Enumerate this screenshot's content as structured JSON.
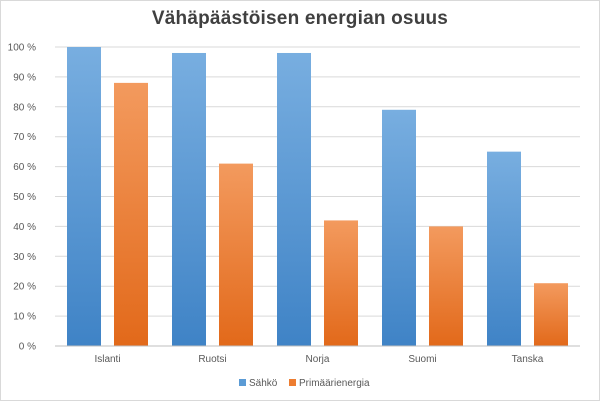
{
  "chart_data": {
    "type": "bar",
    "title": "Vähäpäästöisen  energian osuus",
    "categories": [
      "Islanti",
      "Ruotsi",
      "Norja",
      "Suomi",
      "Tanska"
    ],
    "series": [
      {
        "name": "Sähkö",
        "values": [
          100,
          98,
          98,
          79,
          65
        ],
        "color": "#5b9bd5"
      },
      {
        "name": "Primäärienergia",
        "values": [
          88,
          61,
          42,
          40,
          21
        ],
        "color": "#ed7d31"
      }
    ],
    "ylim": [
      0,
      100
    ],
    "yticks": [
      "0 %",
      "10 %",
      "20 %",
      "30 %",
      "40 %",
      "50 %",
      "60 %",
      "70 %",
      "80 %",
      "90 %",
      "100 %"
    ],
    "grid": true,
    "legend_position": "bottom"
  }
}
